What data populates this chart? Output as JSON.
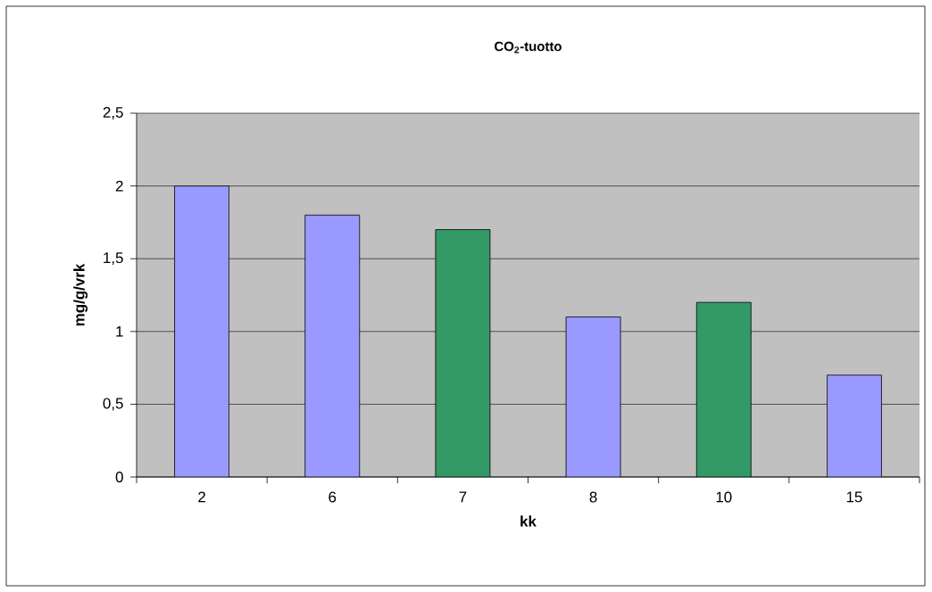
{
  "chart_data": {
    "type": "bar",
    "title": "CO$_{2}$-tuotto",
    "xlabel": "kk",
    "ylabel": "mg/g/vrk",
    "categories": [
      "2",
      "6",
      "7",
      "8",
      "10",
      "15"
    ],
    "values": [
      2,
      1.8,
      1.7,
      1.1,
      1.2,
      0.7
    ],
    "colors": [
      "#9999ff",
      "#9999ff",
      "#339966",
      "#9999ff",
      "#339966",
      "#9999ff"
    ],
    "ylim": [
      0,
      2.5
    ],
    "yticks": [
      0,
      {
        "value": 0.5,
        "label": "0,5"
      },
      1,
      {
        "value": 1.5,
        "label": "1,5"
      },
      2,
      {
        "value": 2.5,
        "label": "2,5"
      }
    ],
    "grid": "y"
  }
}
